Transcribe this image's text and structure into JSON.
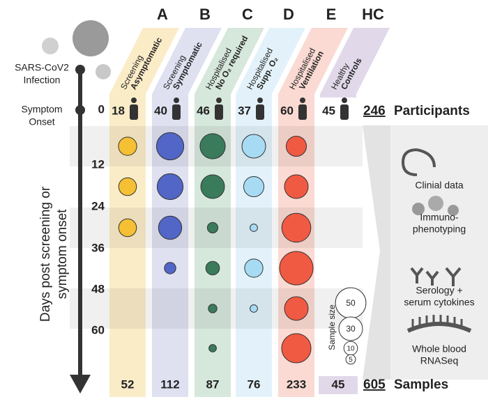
{
  "timeline": {
    "infection": [
      "SARS-CoV2",
      "Infection"
    ],
    "onset": [
      "Symptom",
      "Onset"
    ],
    "axis_title": [
      "Days post screening or",
      "symptom onset"
    ],
    "days": [
      0,
      12,
      24,
      36,
      48,
      60
    ]
  },
  "groups": [
    {
      "letter": "A",
      "line1": "Screening",
      "line2": "Asymptomatic",
      "participants": 18,
      "samples": 52,
      "color": "#f5c033",
      "band": "#fbecc8",
      "sample_sizes": [
        18,
        17,
        17,
        null,
        null,
        null
      ]
    },
    {
      "letter": "B",
      "line1": "Screening",
      "line2": "Symptomatic",
      "participants": 40,
      "samples": 112,
      "color": "#5166c6",
      "band": "#dfe1f1",
      "sample_sizes": [
        40,
        36,
        29,
        7,
        null,
        null
      ]
    },
    {
      "letter": "C",
      "line1": "Hospitalised",
      "line2": "No O₂ required",
      "participants": 46,
      "samples": 87,
      "color": "#3a7b5b",
      "band": "#d6e7dc",
      "sample_sizes": [
        34,
        30,
        6,
        10,
        4,
        3
      ]
    },
    {
      "letter": "D",
      "line1": "Hospitalised",
      "line2": "Supp. O₂",
      "participants": 37,
      "samples": 76,
      "color": "#a7dbf4",
      "band": "#e3f2fa",
      "sample_sizes": [
        30,
        22,
        3,
        18,
        3,
        null
      ]
    },
    {
      "letter": "E",
      "line1": "Hospitalised",
      "line2": "Ventilation",
      "participants": 60,
      "samples": 233,
      "color": "#f15a42",
      "band": "#fadad3",
      "sample_sizes": [
        22,
        30,
        45,
        60,
        30,
        46
      ]
    },
    {
      "letter": "HC",
      "line1": "Healthy",
      "line2": "Controls",
      "participants": 45,
      "samples": 45,
      "color": "#8a7fa8",
      "band": "#e1d9ea",
      "sample_sizes": [
        null,
        null,
        null,
        null,
        null,
        null
      ]
    }
  ],
  "totals": {
    "participants": 246,
    "participants_label": "Participants",
    "samples": 605,
    "samples_label": "Samples"
  },
  "legend": {
    "title": "Sample size",
    "sizes": [
      50,
      30,
      10,
      5
    ]
  },
  "outputs": [
    [
      "Clinial data"
    ],
    [
      "Immuno-",
      "phenotyping"
    ],
    [
      "Serology +",
      "serum cytokines"
    ],
    [
      "Whole blood",
      "RNASeq"
    ]
  ]
}
